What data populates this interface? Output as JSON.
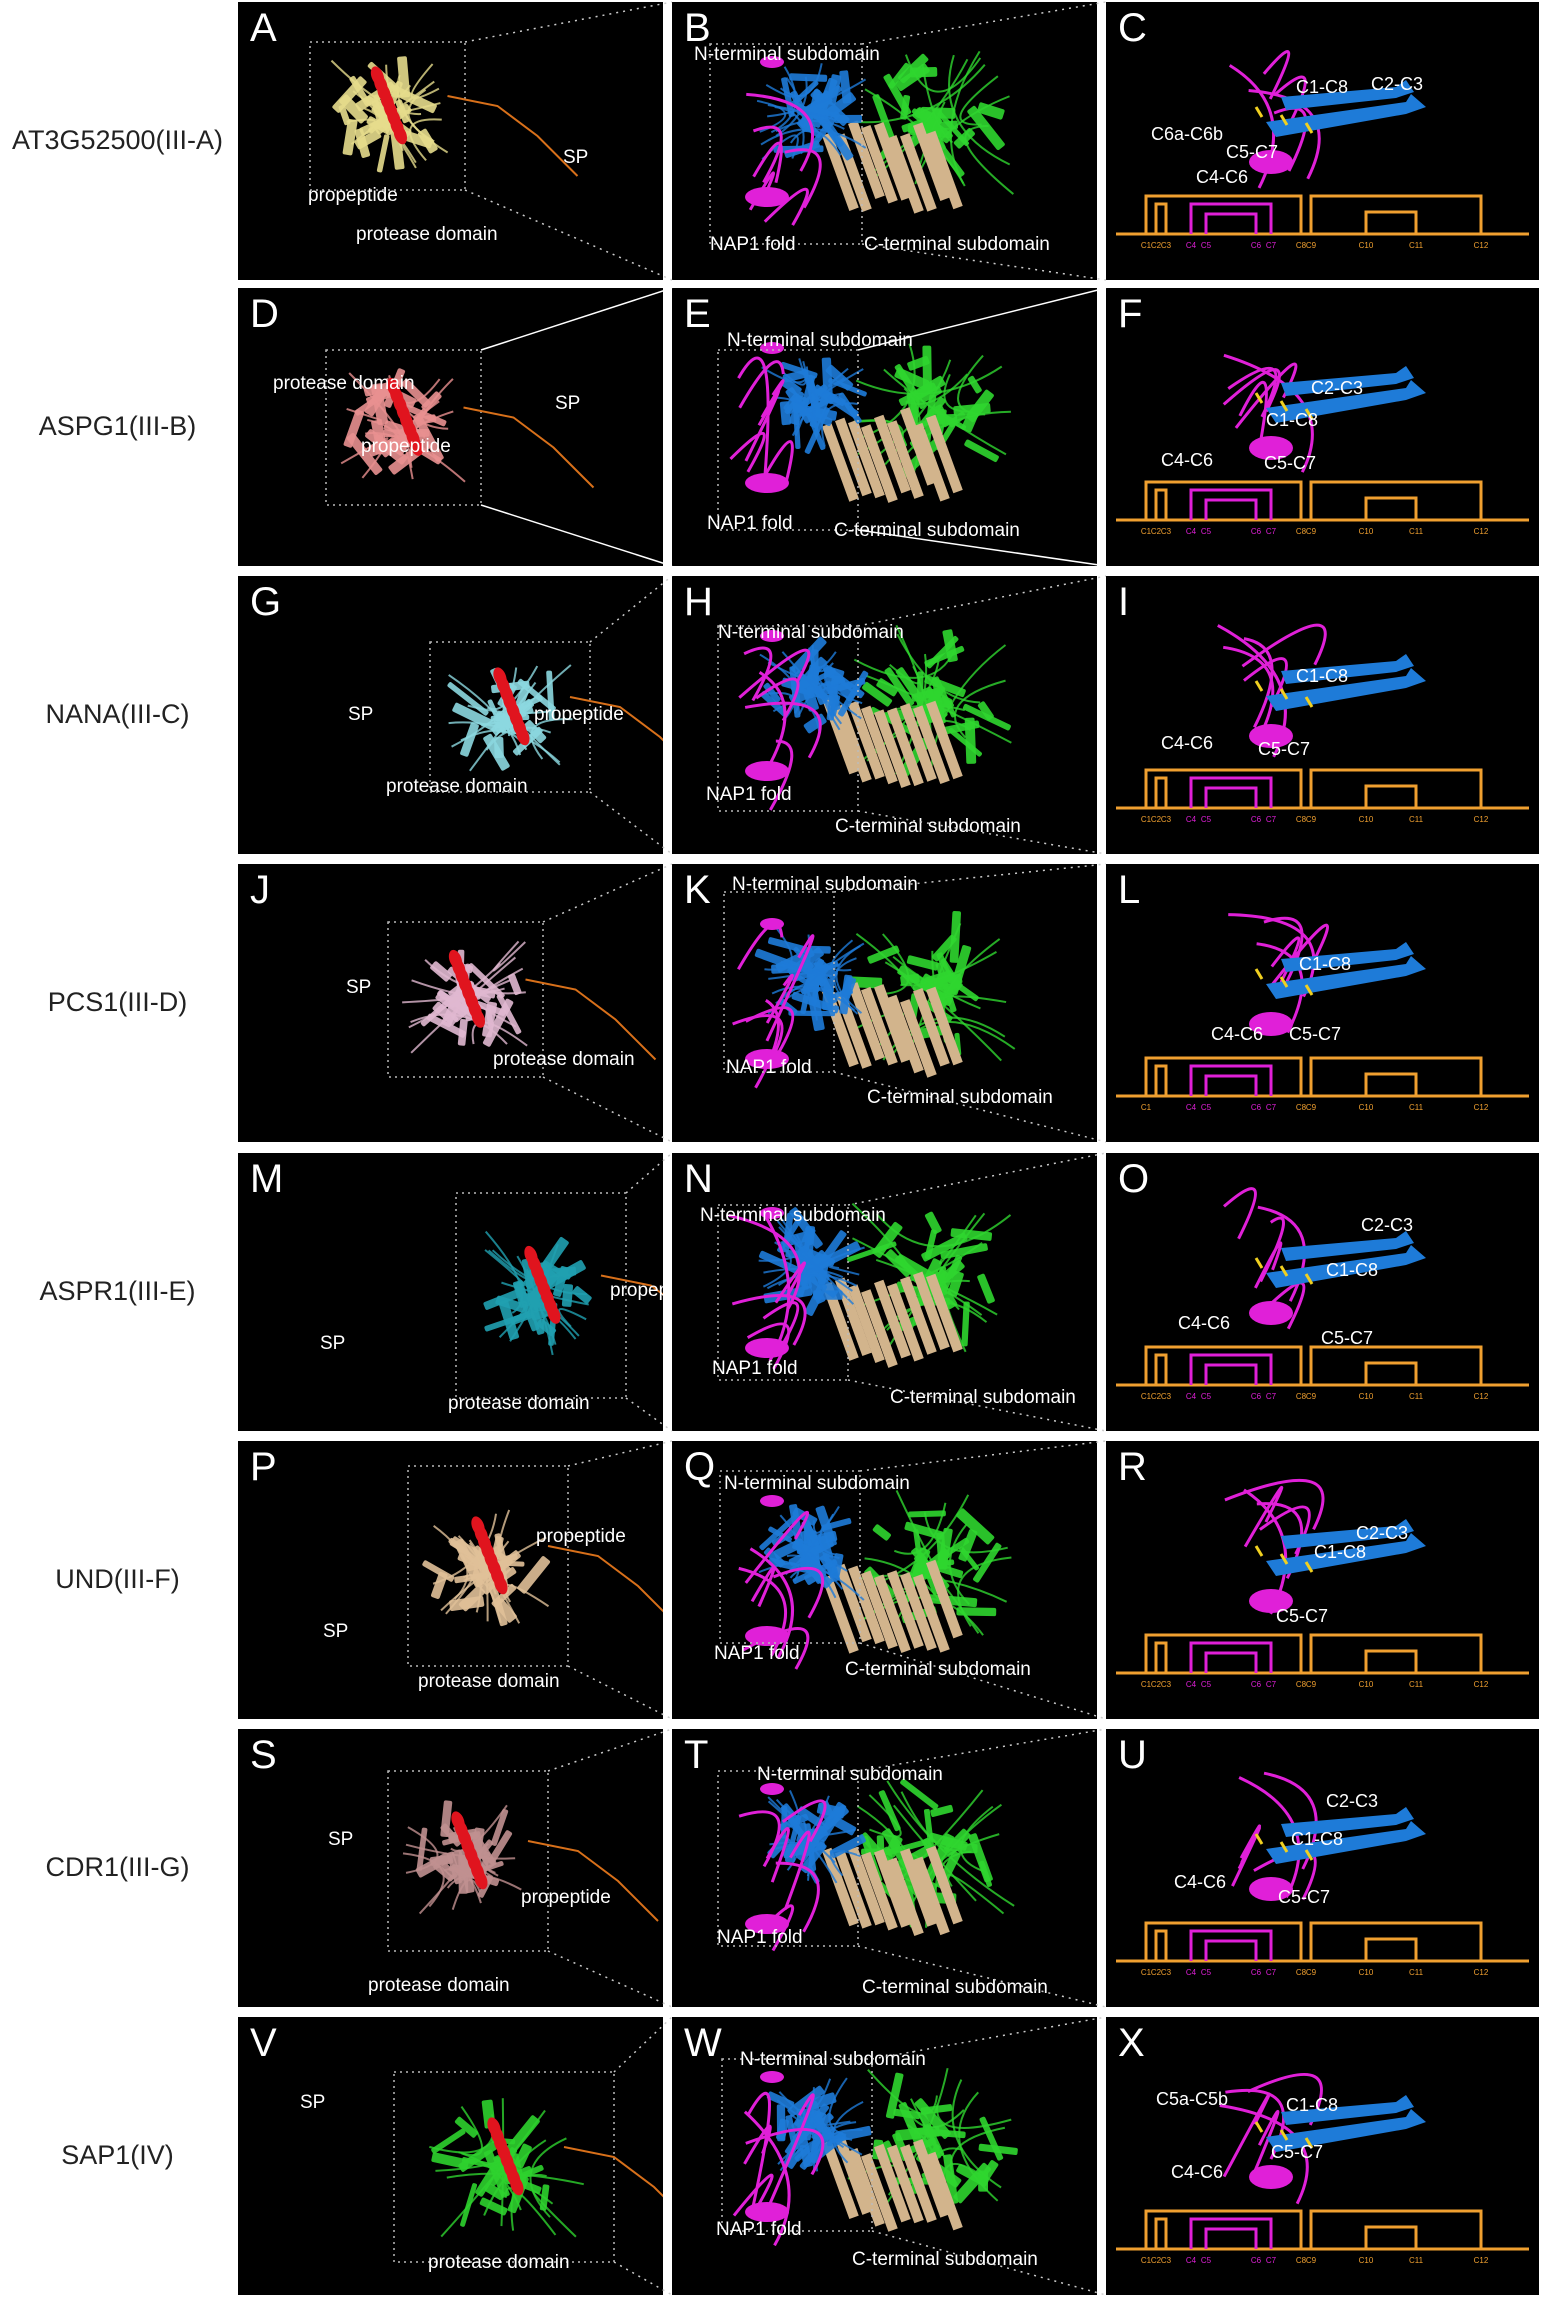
{
  "rows": [
    {
      "name": "AT3G52500(III-A)",
      "panels": [
        {
          "letter": "A",
          "labels": [
            "propeptide",
            "protease domain",
            "SP"
          ]
        },
        {
          "letter": "B",
          "labels": [
            "N-terminal subdomain",
            "NAP1 fold",
            "C-terminal subdomain"
          ]
        },
        {
          "letter": "C",
          "labels": [
            "C2-C3",
            "C1-C8",
            "C6a-C6b",
            "C5-C7",
            "C4-C6"
          ]
        }
      ]
    },
    {
      "name": "ASPG1(III-B)",
      "panels": [
        {
          "letter": "D",
          "labels": [
            "protease domain",
            "SP",
            "propeptide"
          ]
        },
        {
          "letter": "E",
          "labels": [
            "N-terminal subdomain",
            "NAP1 fold",
            "C-terminal subdomain"
          ]
        },
        {
          "letter": "F",
          "labels": [
            "C2-C3",
            "C1-C8",
            "C4-C6",
            "C5-C7"
          ]
        }
      ]
    },
    {
      "name": "NANA(III-C)",
      "panels": [
        {
          "letter": "G",
          "labels": [
            "SP",
            "propeptide",
            "protease domain"
          ]
        },
        {
          "letter": "H",
          "labels": [
            "N-terminal subdomain",
            "NAP1 fold",
            "C-terminal subdomain"
          ]
        },
        {
          "letter": "I",
          "labels": [
            "C1-C8",
            "C4-C6",
            "C5-C7"
          ]
        }
      ]
    },
    {
      "name": "PCS1(III-D)",
      "panels": [
        {
          "letter": "J",
          "labels": [
            "SP",
            "protease domain"
          ]
        },
        {
          "letter": "K",
          "labels": [
            "N-terminal subdomain",
            "NAP1 fold",
            "C-terminal subdomain"
          ]
        },
        {
          "letter": "L",
          "labels": [
            "C1-C8",
            "C4-C6",
            "C5-C7"
          ]
        }
      ]
    },
    {
      "name": "ASPR1(III-E)",
      "panels": [
        {
          "letter": "M",
          "labels": [
            "propeptide",
            "SP",
            "protease domain"
          ]
        },
        {
          "letter": "N",
          "labels": [
            "N-terminal subdomain",
            "NAP1 fold",
            "C-terminal subdomain"
          ]
        },
        {
          "letter": "O",
          "labels": [
            "C2-C3",
            "C1-C8",
            "C4-C6",
            "C5-C7"
          ]
        }
      ]
    },
    {
      "name": "UND(III-F)",
      "panels": [
        {
          "letter": "P",
          "labels": [
            "propeptide",
            "SP",
            "protease domain"
          ]
        },
        {
          "letter": "Q",
          "labels": [
            "N-terminal subdomain",
            "NAP1 fold",
            "C-terminal subdomain"
          ]
        },
        {
          "letter": "R",
          "labels": [
            "C2-C3",
            "C1-C8",
            "C5-C7"
          ]
        }
      ]
    },
    {
      "name": "CDR1(III-G)",
      "panels": [
        {
          "letter": "S",
          "labels": [
            "SP",
            "propeptide",
            "protease domain"
          ]
        },
        {
          "letter": "T",
          "labels": [
            "N-terminal subdomain",
            "NAP1 fold",
            "C-terminal subdomain"
          ]
        },
        {
          "letter": "U",
          "labels": [
            "C2-C3",
            "C1-C8",
            "C4-C6",
            "C5-C7"
          ]
        }
      ]
    },
    {
      "name": "SAP1(IV)",
      "panels": [
        {
          "letter": "V",
          "labels": [
            "SP",
            "protease domain"
          ]
        },
        {
          "letter": "W",
          "labels": [
            "N-terminal subdomain",
            "NAP1 fold",
            "C-terminal subdomain"
          ]
        },
        {
          "letter": "X",
          "labels": [
            "C5a-C5b",
            "C1-C8",
            "C5-C7",
            "C4-C6"
          ]
        }
      ]
    }
  ],
  "cys_ticks": {
    "standard": [
      "C1",
      "C2",
      "C3",
      "C4",
      "C5",
      "C6",
      "C7",
      "C8",
      "C9",
      "C10",
      "C11",
      "C12"
    ],
    "pcs1": [
      "C1",
      "C4",
      "C5",
      "C6",
      "C7",
      "C8",
      "C9",
      "C10",
      "C11",
      "C12"
    ]
  },
  "colors": {
    "background": "#000000",
    "nterm": "#1e7bd8",
    "nap1": "#e020d8",
    "cterm": "#2fd62f",
    "core": "#d2b48c",
    "disulfide": "#f0d020",
    "bracket": "#f0a030",
    "propeptide": "#e0141e",
    "sp": "#d8701a",
    "proteaseA": "#e6dc8c",
    "proteaseD": "#e89090",
    "proteaseG": "#8cd8e0",
    "proteaseJ": "#e0b8d0",
    "proteaseM": "#20a0b0",
    "proteaseP": "#e0c098",
    "proteaseS": "#c09090",
    "proteaseV": "#2ed22e"
  }
}
